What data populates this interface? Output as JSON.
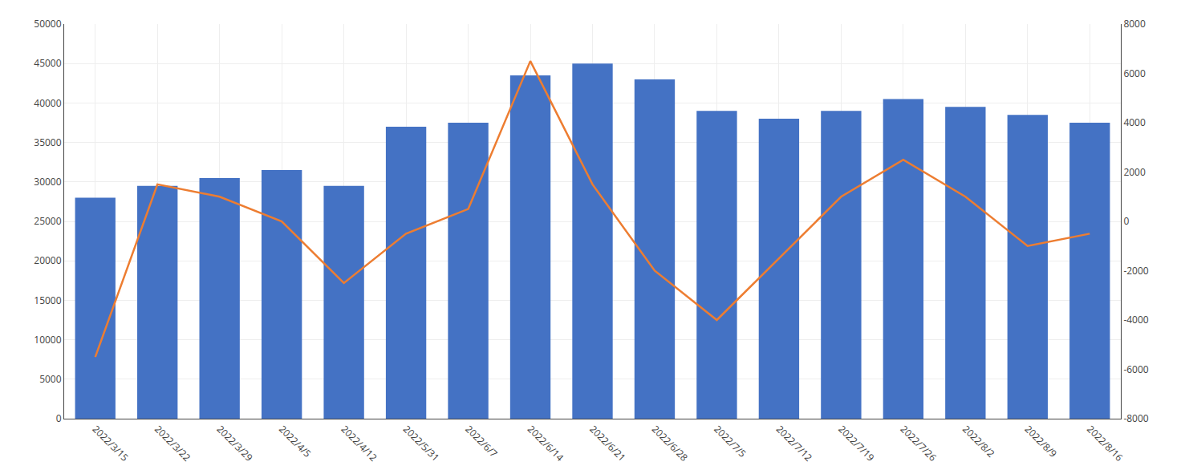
{
  "chart_data": {
    "type": "bar",
    "categories": [
      "2022/3/15",
      "2022/3/22",
      "2022/3/29",
      "2022/4/5",
      "2022/4/12",
      "2022/5/31",
      "2022/6/7",
      "2022/6/14",
      "2022/6/21",
      "2022/6/28",
      "2022/7/5",
      "2022/7/12",
      "2022/7/19",
      "2022/7/26",
      "2022/8/2",
      "2022/8/9",
      "2022/8/16"
    ],
    "series": [
      {
        "type": "bar",
        "color": "#4472C4",
        "values": [
          28000,
          29500,
          30500,
          31500,
          29500,
          37000,
          37500,
          43500,
          45000,
          43000,
          39000,
          38000,
          39000,
          40500,
          39500,
          38500,
          37500
        ]
      },
      {
        "type": "line",
        "color": "#ED7D31",
        "axis": "y2",
        "values": [
          -5500,
          1500,
          1000,
          0,
          -2500,
          -500,
          500,
          6500,
          1500,
          -2000,
          -4000,
          -1500,
          1000,
          2500,
          1000,
          -1000,
          -500
        ]
      }
    ],
    "ylim": [
      0,
      50000
    ],
    "yticks": [
      0,
      5000,
      10000,
      15000,
      20000,
      25000,
      30000,
      35000,
      40000,
      45000,
      50000
    ],
    "y2lim": [
      -8000,
      8000
    ],
    "y2ticks": [
      -8000,
      -6000,
      -4000,
      -2000,
      0,
      2000,
      4000,
      6000,
      8000
    ],
    "grid": true
  }
}
